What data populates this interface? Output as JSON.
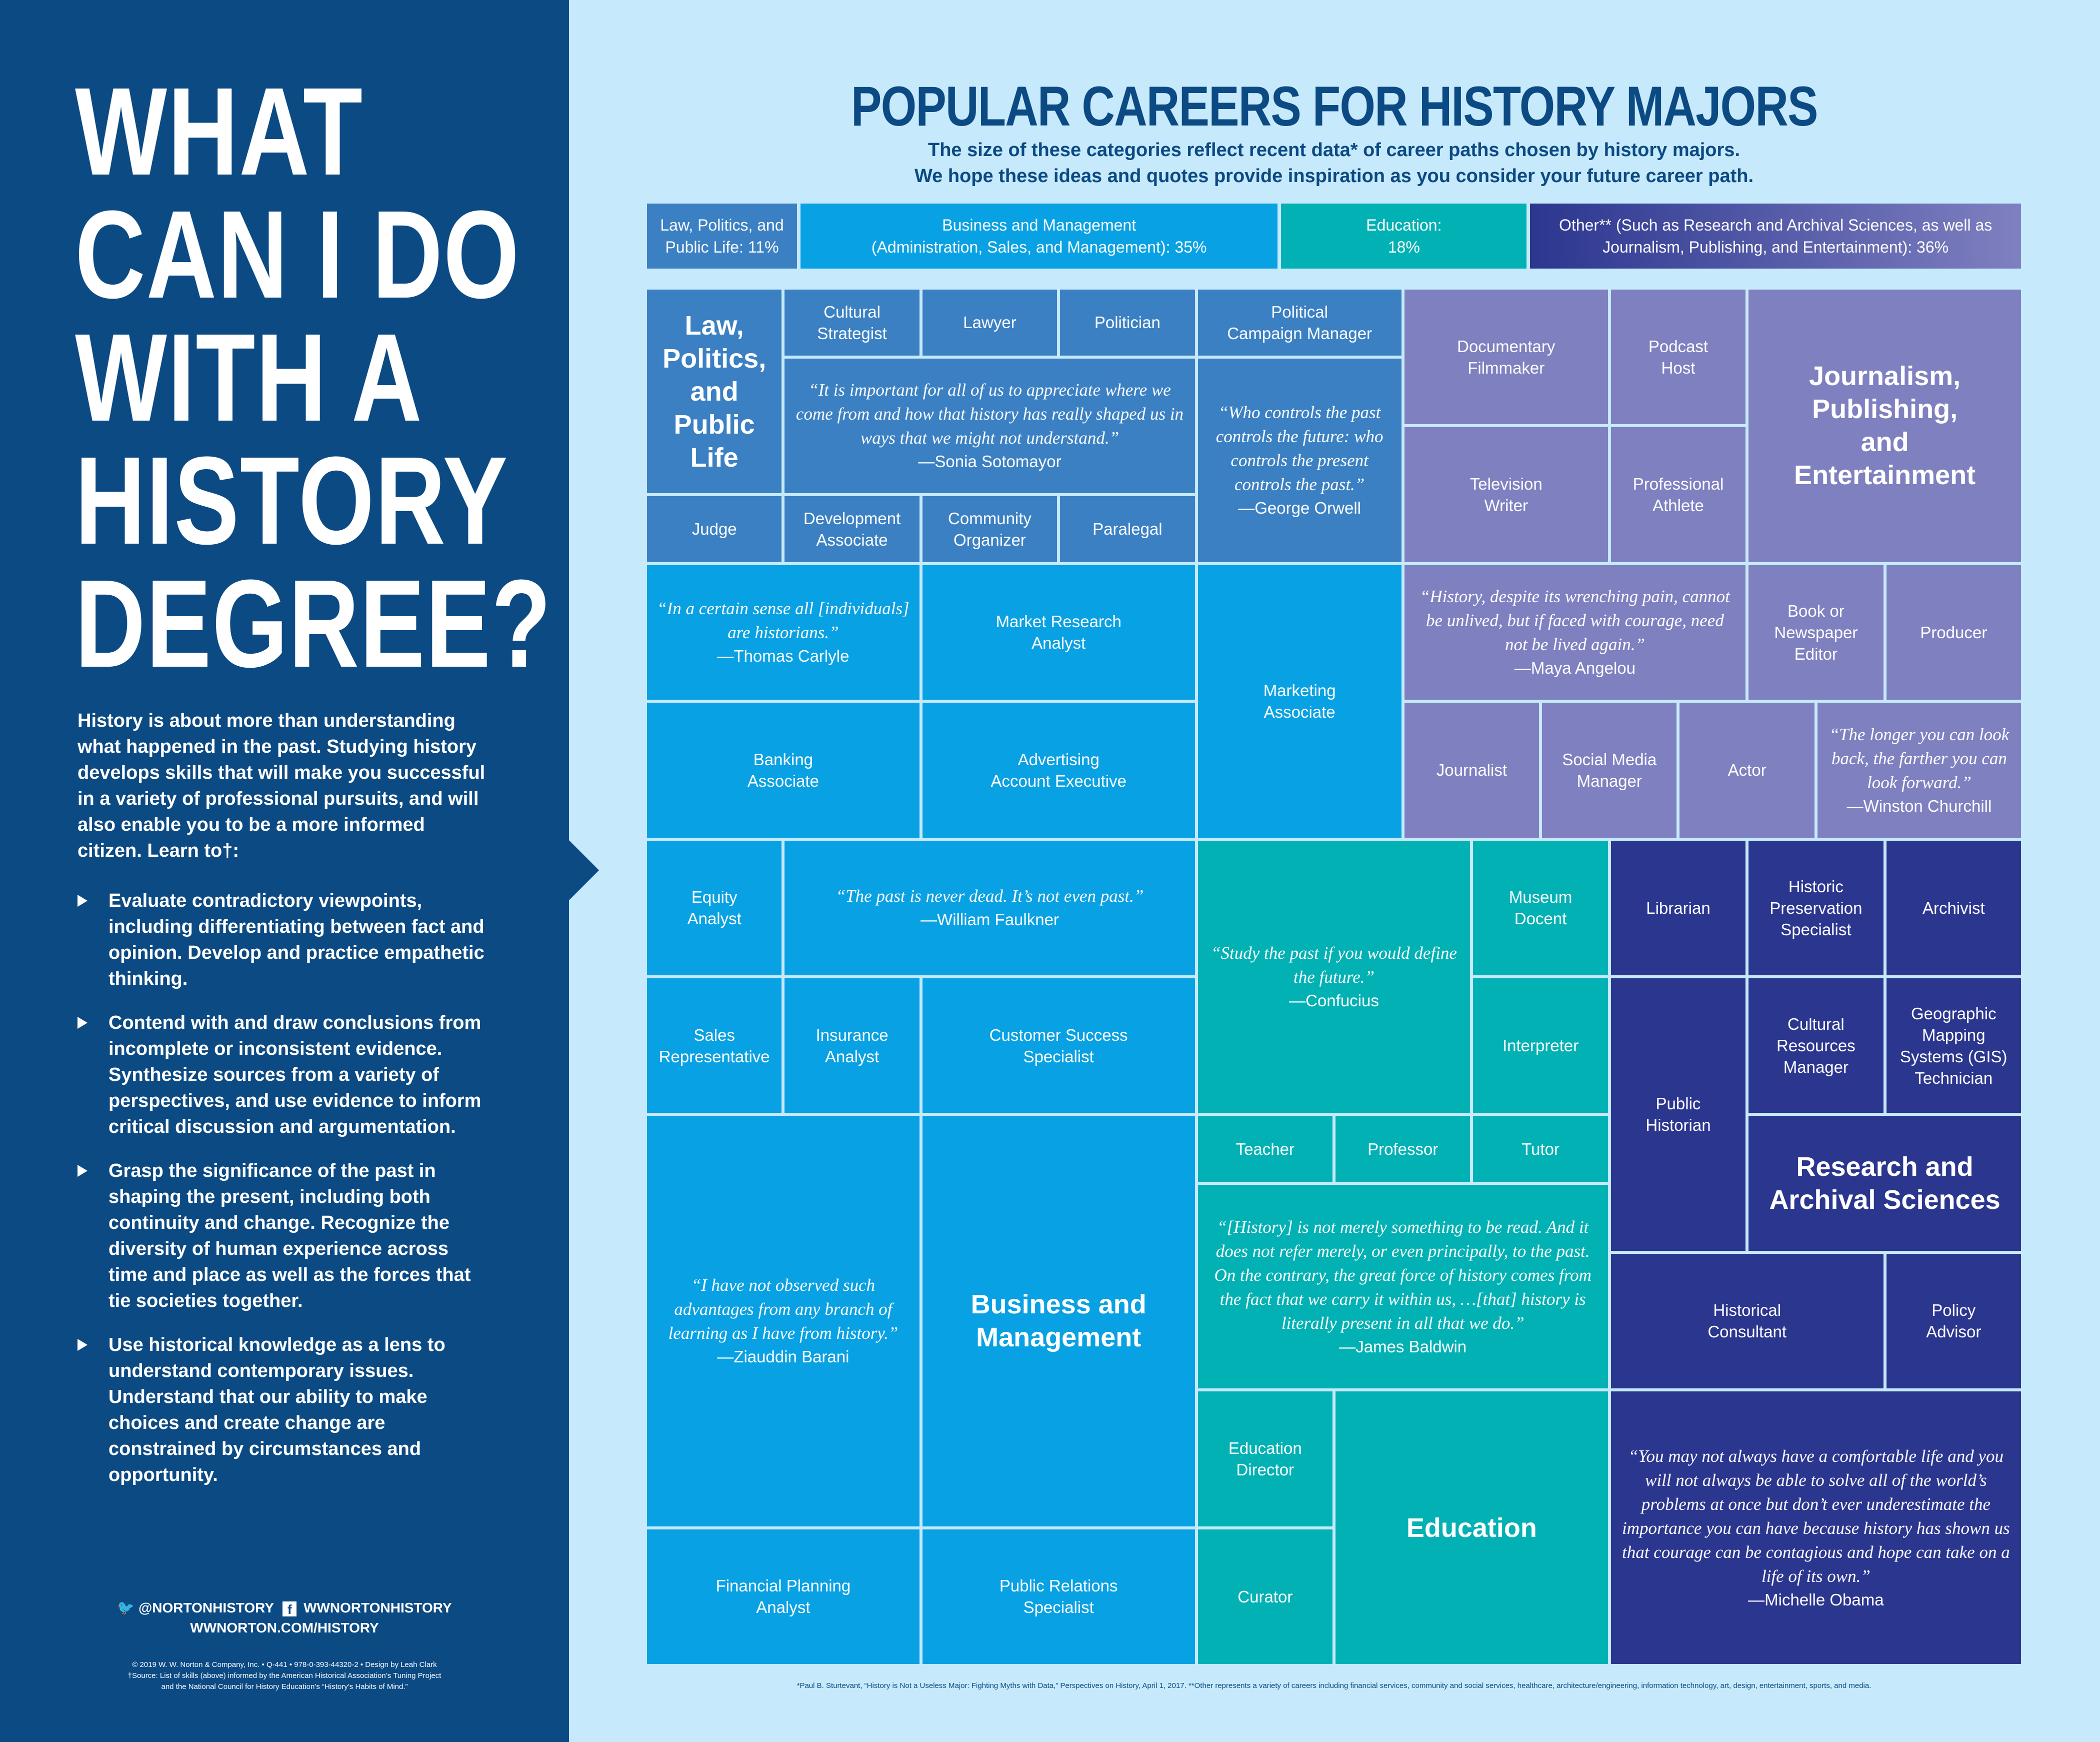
{
  "left": {
    "title": "WHAT\nCAN I DO\nWITH A\nHISTORY\nDEGREE?",
    "intro": "History is about more than understanding what happened in the past. Studying history develops skills that will make you successful in a variety of professional pursuits, and will also enable you to be a more informed citizen. Learn to†:",
    "skills": [
      "Evaluate contradictory viewpoints, including differentiating between fact and opinion. Develop and practice empathetic thinking.",
      "Contend with and draw conclusions from incomplete or inconsistent evidence. Synthesize sources from a variety of perspectives, and use evidence to inform critical discussion and argumentation.",
      "Grasp the significance of the past in shaping the present, including both continuity and change. Recognize the diversity of human experience across time and place as well as the forces that tie societies together.",
      "Use historical knowledge as a lens to understand contemporary issues. Understand that our ability to make choices and create change are constrained by circumstances and opportunity."
    ],
    "twitter": "@NORTONHISTORY",
    "facebook": "WWNORTONHISTORY",
    "website": "WWNORTON.COM/HISTORY",
    "copyright": "© 2019 W. W. Norton & Company, Inc. • Q-441 • 978-0-393-44320-2 • Design by Leah Clark",
    "source": "†Source: List of skills (above) informed by the American Historical Association’s Tuning Project and the National Council for History Education’s “History’s Habits of Mind.”"
  },
  "header": {
    "title": "POPULAR CAREERS FOR HISTORY MAJORS",
    "subtitle1": "The size of these categories reflect recent data* of career paths chosen by history majors.",
    "subtitle2": "We hope these ideas and quotes provide inspiration as you consider your future career path."
  },
  "legend": [
    {
      "label": "Law, Politics, and\nPublic Life: 11%",
      "percent": 11,
      "color": "#3b80c3"
    },
    {
      "label": "Business and Management\n(Administration, Sales, and Management): 35%",
      "percent": 35,
      "color": "#08a1e3"
    },
    {
      "label": "Education:\n18%",
      "percent": 18,
      "color": "#02b1b4"
    },
    {
      "label": "Other** (Such as Research and Archival Sciences, as well as\nJournalism, Publishing, and Entertainment): 36%",
      "percent": 36,
      "color": "#2b368f",
      "color2": "#7f80c0"
    }
  ],
  "cells": {
    "law_title": {
      "cat": "law",
      "label": "Law,\nPolitics,\nand\nPublic\nLife"
    },
    "cultural_strategist": {
      "cat": "law",
      "label": "Cultural\nStrategist"
    },
    "lawyer": {
      "cat": "law",
      "label": "Lawyer"
    },
    "politician": {
      "cat": "law",
      "label": "Politician"
    },
    "sotomayor": {
      "cat": "law",
      "quote": "“It is important for all of us to appreciate where we come from and how that history has really shaped us in ways that we might not understand.”",
      "author": "—Sonia Sotomayor"
    },
    "judge": {
      "cat": "law",
      "label": "Judge"
    },
    "development_associate": {
      "cat": "law",
      "label": "Development\nAssociate"
    },
    "community_organizer": {
      "cat": "law",
      "label": "Community\nOrganizer"
    },
    "paralegal": {
      "cat": "law",
      "label": "Paralegal"
    },
    "campaign_manager": {
      "cat": "law",
      "label": "Political\nCampaign Manager"
    },
    "orwell": {
      "cat": "law",
      "quote": "“Who controls the past controls the future: who controls the present controls the past.”",
      "author": "—George Orwell"
    },
    "carlyle": {
      "cat": "biz",
      "quote": "“In a certain sense all [individuals] are historians.”",
      "author": "—Thomas Carlyle"
    },
    "market_research": {
      "cat": "biz",
      "label": "Market Research\nAnalyst"
    },
    "marketing_associate": {
      "cat": "biz",
      "label": "Marketing\nAssociate"
    },
    "banking_associate": {
      "cat": "biz",
      "label": "Banking\nAssociate"
    },
    "advertising": {
      "cat": "biz",
      "label": "Advertising\nAccount Executive"
    },
    "equity_analyst": {
      "cat": "biz",
      "label": "Equity\nAnalyst"
    },
    "faulkner": {
      "cat": "biz",
      "quote": "“The past is never dead. It’s not even past.”",
      "author": "—William Faulkner"
    },
    "sales_rep": {
      "cat": "biz",
      "label": "Sales\nRepresentative"
    },
    "insurance_analyst": {
      "cat": "biz",
      "label": "Insurance\nAnalyst"
    },
    "customer_success": {
      "cat": "biz",
      "label": "Customer Success\nSpecialist"
    },
    "barani": {
      "cat": "biz",
      "quote": "“I have not observed such advantages from any branch of learning as I have from history.”",
      "author": "—Ziauddin Barani"
    },
    "biz_title": {
      "cat": "biz",
      "label": "Business and\nManagement"
    },
    "financial_planning": {
      "cat": "biz",
      "label": "Financial Planning\nAnalyst"
    },
    "public_relations": {
      "cat": "biz",
      "label": "Public Relations\nSpecialist"
    },
    "confucius": {
      "cat": "edu",
      "quote": "“Study the past if you would define the future.”",
      "author": "—Confucius"
    },
    "museum_docent": {
      "cat": "edu",
      "label": "Museum\nDocent"
    },
    "interpreter": {
      "cat": "edu",
      "label": "Interpreter"
    },
    "teacher": {
      "cat": "edu",
      "label": "Teacher"
    },
    "professor": {
      "cat": "edu",
      "label": "Professor"
    },
    "tutor": {
      "cat": "edu",
      "label": "Tutor"
    },
    "baldwin": {
      "cat": "edu",
      "quote": "“[History] is not merely something to be read. And it does not refer merely, or even principally, to the past. On the contrary, the great force of history comes from the fact that we carry it within us, …[that] history is literally present in all that we do.”",
      "author": "—James Baldwin"
    },
    "education_director": {
      "cat": "edu",
      "label": "Education\nDirector"
    },
    "curator": {
      "cat": "edu",
      "label": "Curator"
    },
    "edu_title": {
      "cat": "edu",
      "label": "Education"
    },
    "documentary": {
      "cat": "jour",
      "label": "Documentary\nFilmmaker"
    },
    "podcast": {
      "cat": "jour",
      "label": "Podcast\nHost"
    },
    "jour_title": {
      "cat": "jour",
      "label": "Journalism,\nPublishing,\nand\nEntertainment"
    },
    "tv_writer": {
      "cat": "jour",
      "label": "Television\nWriter"
    },
    "athlete": {
      "cat": "jour",
      "label": "Professional\nAthlete"
    },
    "angelou": {
      "cat": "jour",
      "quote": "“History, despite its wrenching pain, cannot be unlived, but if faced with courage, need not be lived again.”",
      "author": "—Maya Angelou"
    },
    "editor": {
      "cat": "jour",
      "label": "Book or\nNewspaper\nEditor"
    },
    "producer": {
      "cat": "jour",
      "label": "Producer"
    },
    "journalist": {
      "cat": "jour",
      "label": "Journalist"
    },
    "social_media": {
      "cat": "jour",
      "label": "Social Media\nManager"
    },
    "actor": {
      "cat": "jour",
      "label": "Actor"
    },
    "churchill": {
      "cat": "jour",
      "quote": "“The longer you can look back, the farther you can look forward.”",
      "author": "—Winston Churchill"
    },
    "librarian": {
      "cat": "res",
      "label": "Librarian"
    },
    "historic_preservation": {
      "cat": "res",
      "label": "Historic\nPreservation\nSpecialist"
    },
    "archivist": {
      "cat": "res",
      "label": "Archivist"
    },
    "public_historian": {
      "cat": "res",
      "label": "Public\nHistorian"
    },
    "cultural_resources": {
      "cat": "res",
      "label": "Cultural\nResources\nManager"
    },
    "gis": {
      "cat": "res",
      "label": "Geographic\nMapping\nSystems (GIS)\nTechnician"
    },
    "res_title": {
      "cat": "res",
      "label": "Research and\nArchival Sciences"
    },
    "historical_consultant": {
      "cat": "res",
      "label": "Historical\nConsultant"
    },
    "policy_advisor": {
      "cat": "res",
      "label": "Policy\nAdvisor"
    },
    "obama": {
      "cat": "res",
      "quote": "“You may not always have a comfortable life and you will not always be able to solve all of the world’s problems at once but don’t ever underestimate the importance you can have because history has shown us that courage can be contagious and hope can take on a life of its own.”",
      "author": "—Michelle Obama"
    }
  },
  "footnote": "*Paul B. Sturtevant, “History is Not a Useless Major: Fighting Myths with Data,” Perspectives on History, April 1, 2017. **Other represents a variety of careers including financial services, community and social services, healthcare, architecture/engineering, information technology, art, design, entertainment, sports, and media."
}
